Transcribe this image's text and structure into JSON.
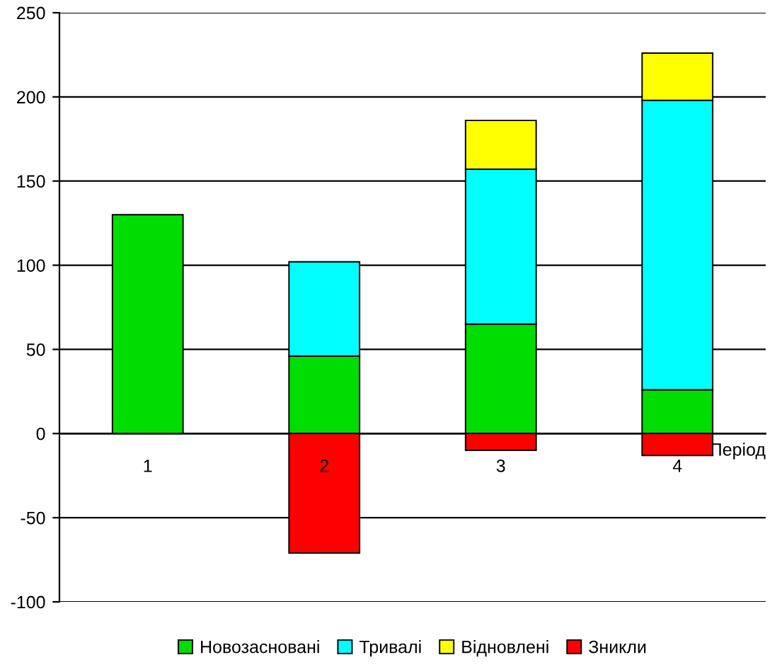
{
  "chart_data": {
    "type": "bar",
    "stacked": true,
    "xlabel": "Період",
    "categories": [
      "1",
      "2",
      "3",
      "4"
    ],
    "series": [
      {
        "name": "Новозасновані",
        "color": "#00dd00",
        "values": [
          130,
          46,
          65,
          26
        ]
      },
      {
        "name": "Тривалі",
        "color": "#00ffff",
        "values": [
          null,
          56,
          92,
          172
        ]
      },
      {
        "name": "Відновлені",
        "color": "#ffff00",
        "values": [
          null,
          null,
          29,
          28
        ]
      },
      {
        "name": "Зникли",
        "color": "#ff0000",
        "values": [
          null,
          -71,
          -10,
          -13
        ]
      }
    ],
    "ylim": [
      -100,
      250
    ],
    "yticks": [
      -100,
      -50,
      0,
      50,
      100,
      150,
      200,
      250
    ],
    "grid": "y",
    "legend": "bottom"
  }
}
